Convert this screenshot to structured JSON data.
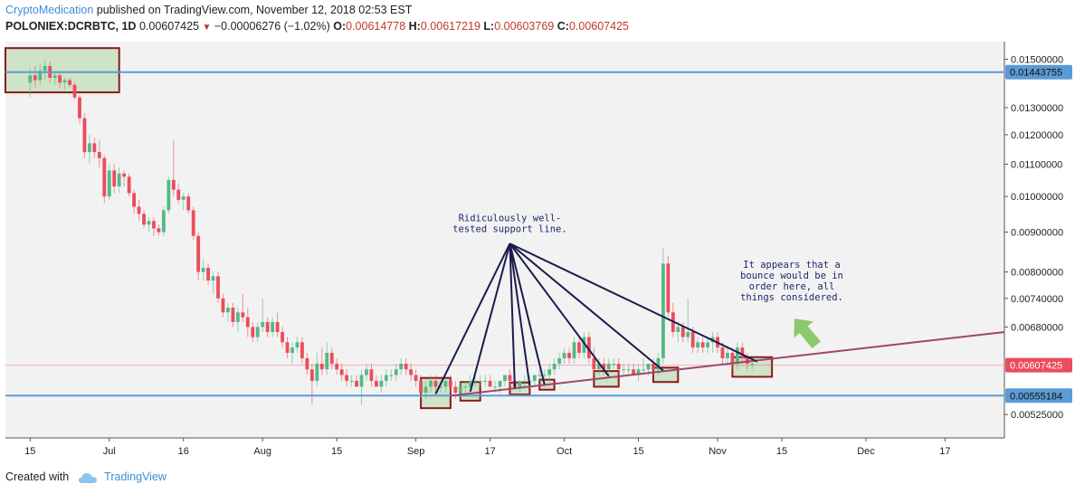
{
  "header": {
    "author": "CryptoMedication",
    "published": "published on TradingView.com, November 12, 2018 02:53 EST"
  },
  "symbol": {
    "name": "POLONIEX:DCRBTC, 1D",
    "last": "0.00607425",
    "change": "−0.00006276 (−1.02%)",
    "o_label": "O:",
    "o": "0.00614778",
    "h_label": "H:",
    "h": "0.00617219",
    "l_label": "L:",
    "l": "0.00603769",
    "c_label": "C:",
    "c": "0.00607425"
  },
  "footer": {
    "created_with": "Created with",
    "brand": "TradingView"
  },
  "colors": {
    "up": "#53b987",
    "down": "#eb4d5c",
    "horizontal_line": "#5b9bd5",
    "trend_line": "#a0456e",
    "annotation_line": "#1b1b4d",
    "box_fill": "#c8e0c0",
    "box_border": "#8b1a1a",
    "arrow": "#8cc96a",
    "plot_bg": "#f2f2f2"
  },
  "chart_data": {
    "type": "candlestick",
    "title": "POLONIEX:DCRBTC, 1D",
    "x_ticks": [
      {
        "day": 0,
        "label": "15"
      },
      {
        "day": 16,
        "label": "Jul"
      },
      {
        "day": 31,
        "label": "16"
      },
      {
        "day": 47,
        "label": "Aug"
      },
      {
        "day": 62,
        "label": "15"
      },
      {
        "day": 78,
        "label": "Sep"
      },
      {
        "day": 93,
        "label": "17"
      },
      {
        "day": 108,
        "label": "Oct"
      },
      {
        "day": 123,
        "label": "15"
      },
      {
        "day": 139,
        "label": "Nov"
      },
      {
        "day": 152,
        "label": "15"
      },
      {
        "day": 169,
        "label": "Dec"
      },
      {
        "day": 185,
        "label": "17"
      }
    ],
    "x_range_days": [
      -5,
      197
    ],
    "y_ticks": [
      "0.01500000",
      "0.01300000",
      "0.01200000",
      "0.01100000",
      "0.01000000",
      "0.00900000",
      "0.00800000",
      "0.00740000",
      "0.00680000",
      "0.00525000"
    ],
    "y_tick_values": [
      0.015,
      0.013,
      0.012,
      0.011,
      0.01,
      0.009,
      0.008,
      0.0074,
      0.0068,
      0.00525
    ],
    "y_scale": "log",
    "y_range": [
      0.0049,
      0.0158
    ],
    "price_labels": [
      {
        "value": 0.01443755,
        "text": "0.01443755",
        "kind": "horizontal-line"
      },
      {
        "value": 0.00607425,
        "text": "0.00607425",
        "kind": "last-price"
      },
      {
        "value": 0.00555184,
        "text": "0.00555184",
        "kind": "horizontal-line"
      }
    ],
    "trendline": {
      "from": {
        "day": 85,
        "price": 0.00555
      },
      "to": {
        "day": 197,
        "price": 0.0067
      }
    },
    "annotations": [
      {
        "lines": [
          "Ridiculously well-",
          "tested support line."
        ],
        "day": 97,
        "price": 0.0093
      },
      {
        "lines": [
          "It appears that a",
          "bounce would be in",
          "order here, all",
          "things considered."
        ],
        "day": 154,
        "price": 0.0081
      }
    ],
    "highlight_boxes": [
      {
        "d1": -5,
        "d2": 18,
        "p1": 0.0136,
        "p2": 0.0155
      },
      {
        "d1": 79,
        "d2": 85,
        "p1": 0.00535,
        "p2": 0.00585
      },
      {
        "d1": 87,
        "d2": 91,
        "p1": 0.00547,
        "p2": 0.00578
      },
      {
        "d1": 97,
        "d2": 101,
        "p1": 0.00557,
        "p2": 0.00577
      },
      {
        "d1": 103,
        "d2": 106,
        "p1": 0.00565,
        "p2": 0.00582
      },
      {
        "d1": 114,
        "d2": 119,
        "p1": 0.0057,
        "p2": 0.00597
      },
      {
        "d1": 126,
        "d2": 131,
        "p1": 0.00578,
        "p2": 0.00603
      },
      {
        "d1": 142,
        "d2": 150,
        "p1": 0.00587,
        "p2": 0.00622
      }
    ],
    "pointer_lines": {
      "origin": {
        "day": 97,
        "price": 0.0087
      },
      "targets": [
        {
          "day": 82,
          "price": 0.00558
        },
        {
          "day": 89,
          "price": 0.00562
        },
        {
          "day": 98,
          "price": 0.00568
        },
        {
          "day": 101,
          "price": 0.00572
        },
        {
          "day": 104,
          "price": 0.00574
        },
        {
          "day": 117,
          "price": 0.00588
        },
        {
          "day": 128,
          "price": 0.00598
        },
        {
          "day": 147,
          "price": 0.00614
        }
      ]
    },
    "candles": [
      {
        "o": 0.014,
        "h": 0.0146,
        "l": 0.0134,
        "c": 0.0143
      },
      {
        "o": 0.0143,
        "h": 0.0147,
        "l": 0.0138,
        "c": 0.0141
      },
      {
        "o": 0.0141,
        "h": 0.0148,
        "l": 0.0139,
        "c": 0.0145
      },
      {
        "o": 0.0145,
        "h": 0.015,
        "l": 0.0141,
        "c": 0.0147
      },
      {
        "o": 0.0147,
        "h": 0.0149,
        "l": 0.014,
        "c": 0.0142
      },
      {
        "o": 0.0142,
        "h": 0.0145,
        "l": 0.0139,
        "c": 0.0143
      },
      {
        "o": 0.0143,
        "h": 0.0144,
        "l": 0.0138,
        "c": 0.014
      },
      {
        "o": 0.014,
        "h": 0.0142,
        "l": 0.0137,
        "c": 0.0141
      },
      {
        "o": 0.0141,
        "h": 0.0142,
        "l": 0.0138,
        "c": 0.0139
      },
      {
        "o": 0.0139,
        "h": 0.014,
        "l": 0.0133,
        "c": 0.0134
      },
      {
        "o": 0.0134,
        "h": 0.0135,
        "l": 0.0124,
        "c": 0.0126
      },
      {
        "o": 0.0126,
        "h": 0.0128,
        "l": 0.0112,
        "c": 0.0114
      },
      {
        "o": 0.0114,
        "h": 0.012,
        "l": 0.011,
        "c": 0.0117
      },
      {
        "o": 0.0117,
        "h": 0.0119,
        "l": 0.0112,
        "c": 0.0114
      },
      {
        "o": 0.0114,
        "h": 0.0118,
        "l": 0.0109,
        "c": 0.0112
      },
      {
        "o": 0.0112,
        "h": 0.0113,
        "l": 0.0098,
        "c": 0.01
      },
      {
        "o": 0.01,
        "h": 0.011,
        "l": 0.0099,
        "c": 0.0108
      },
      {
        "o": 0.0108,
        "h": 0.011,
        "l": 0.0101,
        "c": 0.0103
      },
      {
        "o": 0.0103,
        "h": 0.0109,
        "l": 0.0101,
        "c": 0.0107
      },
      {
        "o": 0.0107,
        "h": 0.0108,
        "l": 0.0103,
        "c": 0.0106
      },
      {
        "o": 0.0106,
        "h": 0.0107,
        "l": 0.01,
        "c": 0.0101
      },
      {
        "o": 0.0101,
        "h": 0.0102,
        "l": 0.0095,
        "c": 0.0097
      },
      {
        "o": 0.0097,
        "h": 0.0099,
        "l": 0.0093,
        "c": 0.0095
      },
      {
        "o": 0.0095,
        "h": 0.0096,
        "l": 0.0091,
        "c": 0.0092
      },
      {
        "o": 0.0092,
        "h": 0.0094,
        "l": 0.009,
        "c": 0.0093
      },
      {
        "o": 0.0093,
        "h": 0.0094,
        "l": 0.0089,
        "c": 0.0091
      },
      {
        "o": 0.0091,
        "h": 0.0092,
        "l": 0.0089,
        "c": 0.009
      },
      {
        "o": 0.009,
        "h": 0.0097,
        "l": 0.0089,
        "c": 0.0096
      },
      {
        "o": 0.0096,
        "h": 0.0106,
        "l": 0.0095,
        "c": 0.0105
      },
      {
        "o": 0.0105,
        "h": 0.0118,
        "l": 0.01,
        "c": 0.0102
      },
      {
        "o": 0.0102,
        "h": 0.0104,
        "l": 0.0098,
        "c": 0.0099
      },
      {
        "o": 0.0099,
        "h": 0.0101,
        "l": 0.0096,
        "c": 0.01
      },
      {
        "o": 0.01,
        "h": 0.0101,
        "l": 0.0095,
        "c": 0.0096
      },
      {
        "o": 0.0096,
        "h": 0.0097,
        "l": 0.0088,
        "c": 0.0089
      },
      {
        "o": 0.0089,
        "h": 0.009,
        "l": 0.0078,
        "c": 0.008
      },
      {
        "o": 0.008,
        "h": 0.0083,
        "l": 0.0078,
        "c": 0.0081
      },
      {
        "o": 0.0081,
        "h": 0.0082,
        "l": 0.0077,
        "c": 0.0078
      },
      {
        "o": 0.0078,
        "h": 0.008,
        "l": 0.0075,
        "c": 0.0079
      },
      {
        "o": 0.0079,
        "h": 0.008,
        "l": 0.0073,
        "c": 0.0074
      },
      {
        "o": 0.0074,
        "h": 0.0075,
        "l": 0.007,
        "c": 0.0071
      },
      {
        "o": 0.0071,
        "h": 0.0073,
        "l": 0.0069,
        "c": 0.0072
      },
      {
        "o": 0.0072,
        "h": 0.0073,
        "l": 0.0068,
        "c": 0.0069
      },
      {
        "o": 0.0069,
        "h": 0.0072,
        "l": 0.0067,
        "c": 0.0071
      },
      {
        "o": 0.0071,
        "h": 0.0075,
        "l": 0.0069,
        "c": 0.007
      },
      {
        "o": 0.007,
        "h": 0.0072,
        "l": 0.0066,
        "c": 0.0068
      },
      {
        "o": 0.0068,
        "h": 0.0069,
        "l": 0.0065,
        "c": 0.0066
      },
      {
        "o": 0.0066,
        "h": 0.0069,
        "l": 0.0065,
        "c": 0.0068
      },
      {
        "o": 0.0068,
        "h": 0.0074,
        "l": 0.0067,
        "c": 0.0069
      },
      {
        "o": 0.0069,
        "h": 0.007,
        "l": 0.0066,
        "c": 0.0067
      },
      {
        "o": 0.0067,
        "h": 0.007,
        "l": 0.0066,
        "c": 0.0069
      },
      {
        "o": 0.0069,
        "h": 0.0071,
        "l": 0.0066,
        "c": 0.0067
      },
      {
        "o": 0.0067,
        "h": 0.0068,
        "l": 0.0064,
        "c": 0.0065
      },
      {
        "o": 0.0065,
        "h": 0.0066,
        "l": 0.0062,
        "c": 0.0063
      },
      {
        "o": 0.0063,
        "h": 0.0065,
        "l": 0.0061,
        "c": 0.0064
      },
      {
        "o": 0.0064,
        "h": 0.0066,
        "l": 0.0063,
        "c": 0.0065
      },
      {
        "o": 0.0065,
        "h": 0.0066,
        "l": 0.0061,
        "c": 0.0062
      },
      {
        "o": 0.0062,
        "h": 0.0063,
        "l": 0.0059,
        "c": 0.006
      },
      {
        "o": 0.006,
        "h": 0.0061,
        "l": 0.0054,
        "c": 0.0058
      },
      {
        "o": 0.0058,
        "h": 0.0063,
        "l": 0.0057,
        "c": 0.0061
      },
      {
        "o": 0.0061,
        "h": 0.0064,
        "l": 0.0059,
        "c": 0.006
      },
      {
        "o": 0.006,
        "h": 0.0065,
        "l": 0.0059,
        "c": 0.0063
      },
      {
        "o": 0.0063,
        "h": 0.0064,
        "l": 0.006,
        "c": 0.0061
      },
      {
        "o": 0.0061,
        "h": 0.0062,
        "l": 0.0059,
        "c": 0.006
      },
      {
        "o": 0.006,
        "h": 0.0061,
        "l": 0.0058,
        "c": 0.0059
      },
      {
        "o": 0.0059,
        "h": 0.006,
        "l": 0.0057,
        "c": 0.0058
      },
      {
        "o": 0.0058,
        "h": 0.0059,
        "l": 0.0057,
        "c": 0.0058
      },
      {
        "o": 0.0058,
        "h": 0.0059,
        "l": 0.0057,
        "c": 0.0057
      },
      {
        "o": 0.0057,
        "h": 0.006,
        "l": 0.0054,
        "c": 0.0059
      },
      {
        "o": 0.0059,
        "h": 0.0061,
        "l": 0.0058,
        "c": 0.006
      },
      {
        "o": 0.006,
        "h": 0.0061,
        "l": 0.0057,
        "c": 0.0058
      },
      {
        "o": 0.0058,
        "h": 0.0059,
        "l": 0.0057,
        "c": 0.0057
      },
      {
        "o": 0.0057,
        "h": 0.0059,
        "l": 0.0056,
        "c": 0.0058
      },
      {
        "o": 0.0058,
        "h": 0.006,
        "l": 0.0057,
        "c": 0.0059
      },
      {
        "o": 0.0059,
        "h": 0.006,
        "l": 0.0058,
        "c": 0.0059
      },
      {
        "o": 0.0059,
        "h": 0.0061,
        "l": 0.0058,
        "c": 0.006
      },
      {
        "o": 0.006,
        "h": 0.0062,
        "l": 0.0059,
        "c": 0.0061
      },
      {
        "o": 0.0061,
        "h": 0.0062,
        "l": 0.0059,
        "c": 0.006
      },
      {
        "o": 0.006,
        "h": 0.0061,
        "l": 0.0058,
        "c": 0.0059
      },
      {
        "o": 0.0059,
        "h": 0.006,
        "l": 0.0057,
        "c": 0.0058
      },
      {
        "o": 0.0058,
        "h": 0.0059,
        "l": 0.0055,
        "c": 0.0056
      },
      {
        "o": 0.0056,
        "h": 0.0058,
        "l": 0.0055,
        "c": 0.0057
      },
      {
        "o": 0.0057,
        "h": 0.0059,
        "l": 0.0056,
        "c": 0.0058
      },
      {
        "o": 0.0058,
        "h": 0.0059,
        "l": 0.0056,
        "c": 0.0057
      },
      {
        "o": 0.0057,
        "h": 0.0058,
        "l": 0.0056,
        "c": 0.0057
      },
      {
        "o": 0.0057,
        "h": 0.0058,
        "l": 0.0056,
        "c": 0.0058
      },
      {
        "o": 0.0058,
        "h": 0.0059,
        "l": 0.0056,
        "c": 0.0057
      },
      {
        "o": 0.0057,
        "h": 0.0058,
        "l": 0.0055,
        "c": 0.0056
      },
      {
        "o": 0.0056,
        "h": 0.0058,
        "l": 0.0055,
        "c": 0.0057
      },
      {
        "o": 0.0057,
        "h": 0.0058,
        "l": 0.0056,
        "c": 0.0057
      },
      {
        "o": 0.0057,
        "h": 0.0059,
        "l": 0.0056,
        "c": 0.0058
      },
      {
        "o": 0.0058,
        "h": 0.0059,
        "l": 0.0057,
        "c": 0.0058
      },
      {
        "o": 0.0058,
        "h": 0.0059,
        "l": 0.0057,
        "c": 0.0058
      },
      {
        "o": 0.0058,
        "h": 0.0059,
        "l": 0.0057,
        "c": 0.0058
      },
      {
        "o": 0.0058,
        "h": 0.0059,
        "l": 0.0057,
        "c": 0.0057
      },
      {
        "o": 0.0057,
        "h": 0.0058,
        "l": 0.0056,
        "c": 0.0057
      },
      {
        "o": 0.0057,
        "h": 0.0058,
        "l": 0.0056,
        "c": 0.0058
      },
      {
        "o": 0.0058,
        "h": 0.0059,
        "l": 0.0057,
        "c": 0.0059
      },
      {
        "o": 0.0059,
        "h": 0.006,
        "l": 0.0057,
        "c": 0.0058
      },
      {
        "o": 0.0058,
        "h": 0.0059,
        "l": 0.0057,
        "c": 0.0057
      },
      {
        "o": 0.0057,
        "h": 0.0058,
        "l": 0.0056,
        "c": 0.0058
      },
      {
        "o": 0.0058,
        "h": 0.0059,
        "l": 0.0057,
        "c": 0.0058
      },
      {
        "o": 0.0058,
        "h": 0.0059,
        "l": 0.0057,
        "c": 0.0058
      },
      {
        "o": 0.0058,
        "h": 0.0059,
        "l": 0.0057,
        "c": 0.0059
      },
      {
        "o": 0.0059,
        "h": 0.006,
        "l": 0.0058,
        "c": 0.0059
      },
      {
        "o": 0.0059,
        "h": 0.006,
        "l": 0.0058,
        "c": 0.0059
      },
      {
        "o": 0.0059,
        "h": 0.0061,
        "l": 0.0058,
        "c": 0.006
      },
      {
        "o": 0.006,
        "h": 0.0062,
        "l": 0.0059,
        "c": 0.0061
      },
      {
        "o": 0.0061,
        "h": 0.0063,
        "l": 0.006,
        "c": 0.0062
      },
      {
        "o": 0.0062,
        "h": 0.0064,
        "l": 0.0061,
        "c": 0.0063
      },
      {
        "o": 0.0063,
        "h": 0.0064,
        "l": 0.0061,
        "c": 0.0062
      },
      {
        "o": 0.0062,
        "h": 0.0066,
        "l": 0.0061,
        "c": 0.0065
      },
      {
        "o": 0.0065,
        "h": 0.0066,
        "l": 0.0062,
        "c": 0.0063
      },
      {
        "o": 0.0063,
        "h": 0.0067,
        "l": 0.0062,
        "c": 0.0066
      },
      {
        "o": 0.0066,
        "h": 0.0067,
        "l": 0.0061,
        "c": 0.0062
      },
      {
        "o": 0.0062,
        "h": 0.0064,
        "l": 0.0059,
        "c": 0.006
      },
      {
        "o": 0.006,
        "h": 0.0062,
        "l": 0.0059,
        "c": 0.0061
      },
      {
        "o": 0.0061,
        "h": 0.0062,
        "l": 0.0059,
        "c": 0.006
      },
      {
        "o": 0.006,
        "h": 0.0062,
        "l": 0.0059,
        "c": 0.0061
      },
      {
        "o": 0.0061,
        "h": 0.0062,
        "l": 0.006,
        "c": 0.0061
      },
      {
        "o": 0.0061,
        "h": 0.0062,
        "l": 0.0059,
        "c": 0.006
      },
      {
        "o": 0.006,
        "h": 0.0061,
        "l": 0.0059,
        "c": 0.006
      },
      {
        "o": 0.006,
        "h": 0.0061,
        "l": 0.0059,
        "c": 0.006
      },
      {
        "o": 0.006,
        "h": 0.0061,
        "l": 0.0059,
        "c": 0.0059
      },
      {
        "o": 0.0059,
        "h": 0.0061,
        "l": 0.0058,
        "c": 0.006
      },
      {
        "o": 0.006,
        "h": 0.0062,
        "l": 0.0059,
        "c": 0.006
      },
      {
        "o": 0.006,
        "h": 0.0061,
        "l": 0.0059,
        "c": 0.0061
      },
      {
        "o": 0.0061,
        "h": 0.0062,
        "l": 0.0059,
        "c": 0.006
      },
      {
        "o": 0.006,
        "h": 0.0063,
        "l": 0.0059,
        "c": 0.0062
      },
      {
        "o": 0.0062,
        "h": 0.0086,
        "l": 0.0061,
        "c": 0.0082
      },
      {
        "o": 0.0082,
        "h": 0.0084,
        "l": 0.007,
        "c": 0.0071
      },
      {
        "o": 0.0071,
        "h": 0.0073,
        "l": 0.0066,
        "c": 0.0067
      },
      {
        "o": 0.0067,
        "h": 0.0069,
        "l": 0.0065,
        "c": 0.0068
      },
      {
        "o": 0.0068,
        "h": 0.0069,
        "l": 0.0065,
        "c": 0.0066
      },
      {
        "o": 0.0066,
        "h": 0.0074,
        "l": 0.0065,
        "c": 0.0067
      },
      {
        "o": 0.0067,
        "h": 0.0068,
        "l": 0.0063,
        "c": 0.0064
      },
      {
        "o": 0.0064,
        "h": 0.0066,
        "l": 0.0063,
        "c": 0.0065
      },
      {
        "o": 0.0065,
        "h": 0.0066,
        "l": 0.0063,
        "c": 0.0064
      },
      {
        "o": 0.0064,
        "h": 0.0066,
        "l": 0.0063,
        "c": 0.0065
      },
      {
        "o": 0.0065,
        "h": 0.0067,
        "l": 0.0063,
        "c": 0.0066
      },
      {
        "o": 0.0066,
        "h": 0.0067,
        "l": 0.0063,
        "c": 0.0064
      },
      {
        "o": 0.0064,
        "h": 0.0065,
        "l": 0.0061,
        "c": 0.0062
      },
      {
        "o": 0.0062,
        "h": 0.0064,
        "l": 0.0061,
        "c": 0.0063
      },
      {
        "o": 0.0063,
        "h": 0.0064,
        "l": 0.006,
        "c": 0.0061
      },
      {
        "o": 0.0061,
        "h": 0.0065,
        "l": 0.006,
        "c": 0.0064
      },
      {
        "o": 0.0064,
        "h": 0.0065,
        "l": 0.0061,
        "c": 0.0062
      },
      {
        "o": 0.0062,
        "h": 0.0063,
        "l": 0.006,
        "c": 0.0061
      },
      {
        "o": 0.0061,
        "h": 0.0062,
        "l": 0.006,
        "c": 0.0061
      }
    ]
  }
}
